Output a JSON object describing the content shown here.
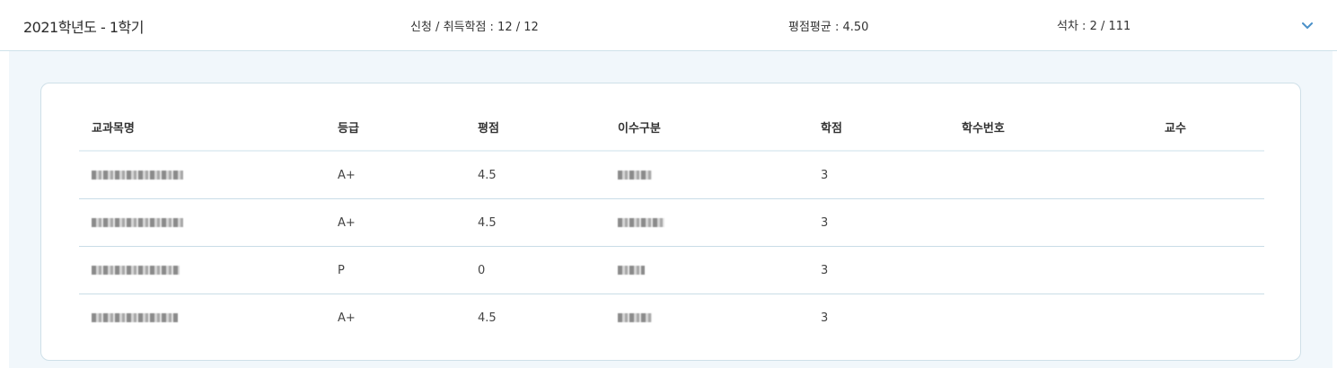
{
  "summary": {
    "term": "2021학년도 - 1학기",
    "credits": "신청 / 취득학점 : 12 / 12",
    "gpa": "평점평균 : 4.50",
    "rank": "석차 : 2 / 111",
    "toggle_icon": "chevron-down-icon"
  },
  "table": {
    "headers": [
      "교과목명",
      "등급",
      "평점",
      "이수구분",
      "학점",
      "학수번호",
      "교수"
    ],
    "rows": [
      {
        "grade": "A+",
        "points": "4.5",
        "credit": "3"
      },
      {
        "grade": "A+",
        "points": "4.5",
        "credit": "3"
      },
      {
        "grade": "P",
        "points": "0",
        "credit": "3"
      },
      {
        "grade": "A+",
        "points": "4.5",
        "credit": "3"
      }
    ]
  },
  "colors": {
    "accent": "#4a90c8",
    "panel_bg": "#f1f7fb",
    "divider": "#c9dde7"
  }
}
